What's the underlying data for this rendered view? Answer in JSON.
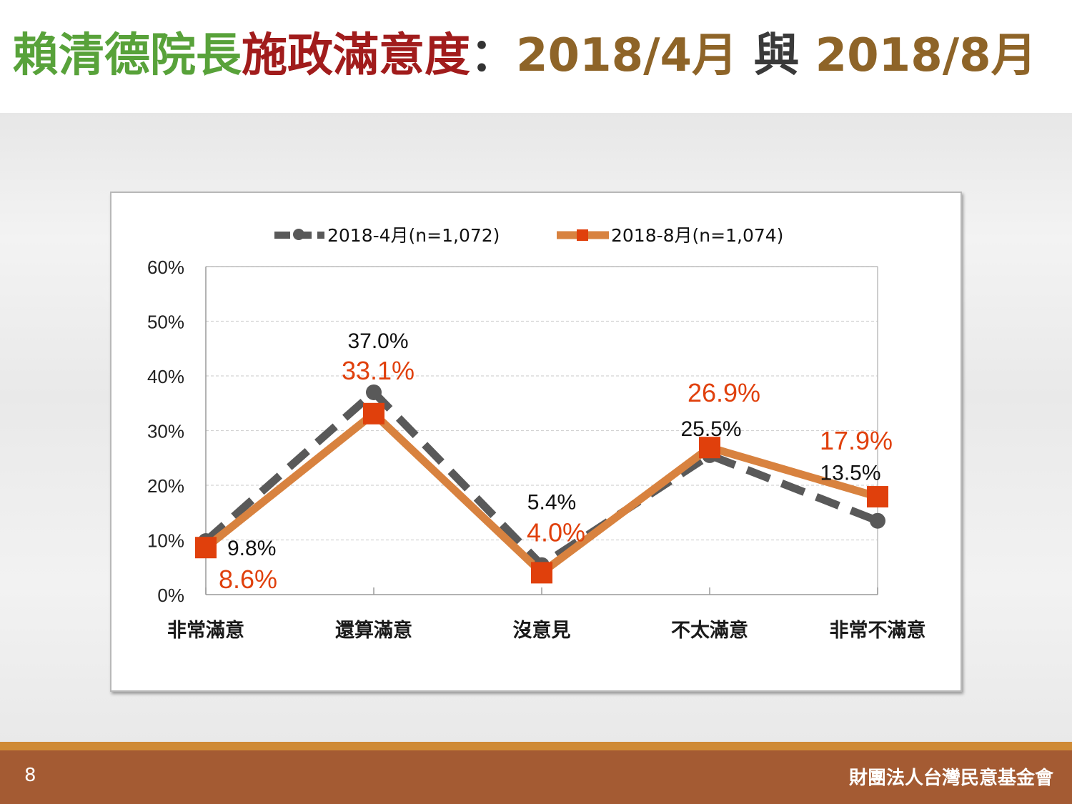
{
  "slide": {
    "title_part1": "賴清德院長",
    "title_part2": "施政滿意度",
    "title_sep": "：",
    "title_part3": "2018/4月",
    "title_part4": " 與 ",
    "title_part5": "2018/8月",
    "page_number": "8",
    "organization": "財團法人台灣民意基金會"
  },
  "colors": {
    "title_green": "#58a23a",
    "title_red": "#a11c1c",
    "title_brown": "#8e6428",
    "series_april": "#595959",
    "series_august_line": "#d8823f",
    "series_august_marker": "#e0400c",
    "label_august": "#e0400c",
    "footer": "#a45b33",
    "footer_accent": "#cf8a35"
  },
  "chart_data": {
    "type": "line",
    "categories": [
      "非常滿意",
      "還算滿意",
      "沒意見",
      "不太滿意",
      "非常不滿意"
    ],
    "series": [
      {
        "name": "2018-4月(n=1,072)",
        "values": [
          9.8,
          37.0,
          5.4,
          25.5,
          13.5
        ],
        "labels": [
          "9.8%",
          "37.0%",
          "5.4%",
          "25.5%",
          "13.5%"
        ],
        "style": "dashed",
        "marker": "circle"
      },
      {
        "name": "2018-8月(n=1,074)",
        "values": [
          8.6,
          33.1,
          4.0,
          26.9,
          17.9
        ],
        "labels": [
          "8.6%",
          "33.1%",
          "4.0%",
          "26.9%",
          "17.9%"
        ],
        "style": "solid",
        "marker": "square"
      }
    ],
    "yticks": [
      "0%",
      "10%",
      "20%",
      "30%",
      "40%",
      "50%",
      "60%"
    ],
    "ylim": [
      0,
      60
    ],
    "grid": true,
    "legend": "top"
  }
}
